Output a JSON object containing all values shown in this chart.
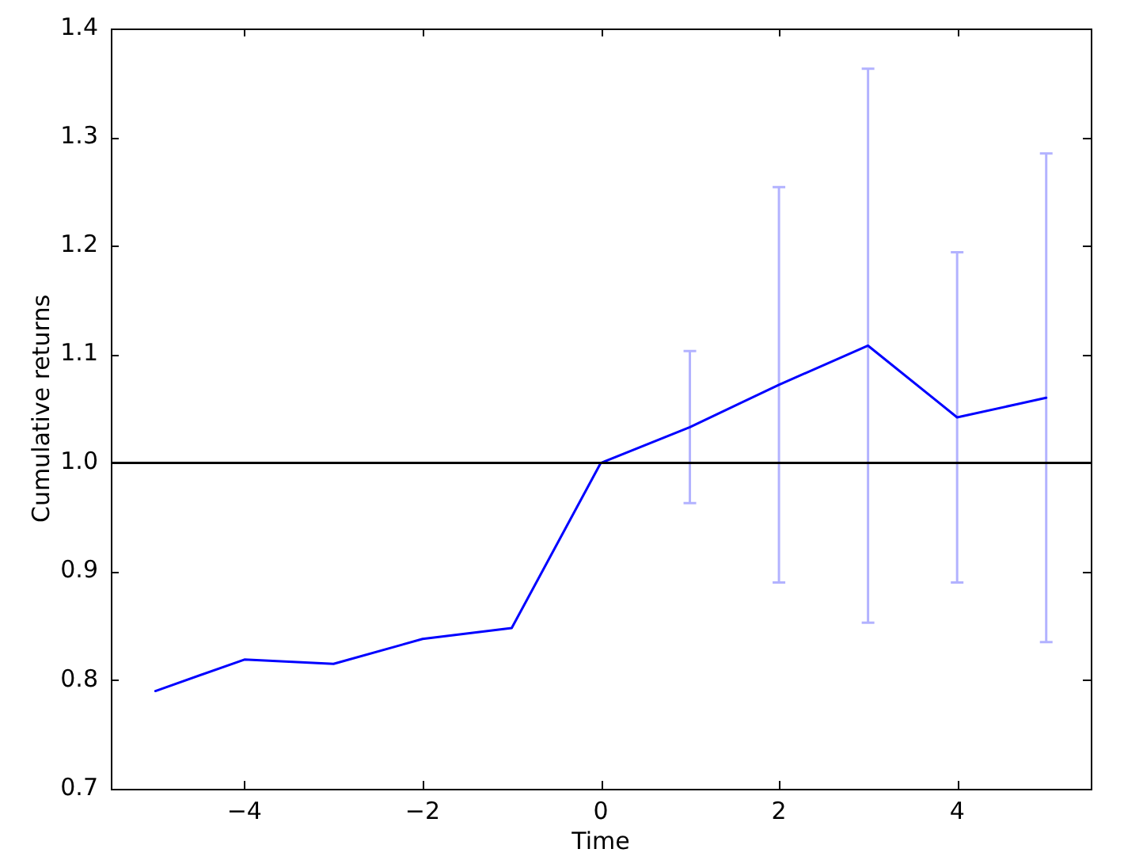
{
  "chart_data": {
    "type": "line",
    "xlabel": "Time",
    "ylabel": "Cumulative returns",
    "x": [
      -5,
      -4,
      -3,
      -2,
      -1,
      0,
      1,
      2,
      3,
      4,
      5
    ],
    "values": [
      0.79,
      0.819,
      0.815,
      0.838,
      0.848,
      1.0,
      1.033,
      1.072,
      1.108,
      1.042,
      1.06
    ],
    "color": "#0000ff",
    "errors": [
      null,
      null,
      null,
      null,
      null,
      null,
      0.07,
      0.182,
      0.255,
      0.152,
      0.225
    ],
    "xlim": [
      -5.5,
      5.5
    ],
    "xticks": [
      {
        "value": -4,
        "label": "−4"
      },
      {
        "value": -2,
        "label": "−2"
      },
      0,
      2,
      4
    ],
    "ylim": [
      0.7,
      1.4
    ],
    "yticks": [
      0.7,
      0.8,
      0.9,
      {
        "value": 1.0,
        "label": "1.0"
      },
      1.1,
      1.2,
      1.3,
      1.4
    ],
    "ref_lines": [
      {
        "axis": "y",
        "value": 1.0,
        "color": "#000000"
      }
    ],
    "grid": false,
    "legend": false,
    "marker": "none"
  }
}
